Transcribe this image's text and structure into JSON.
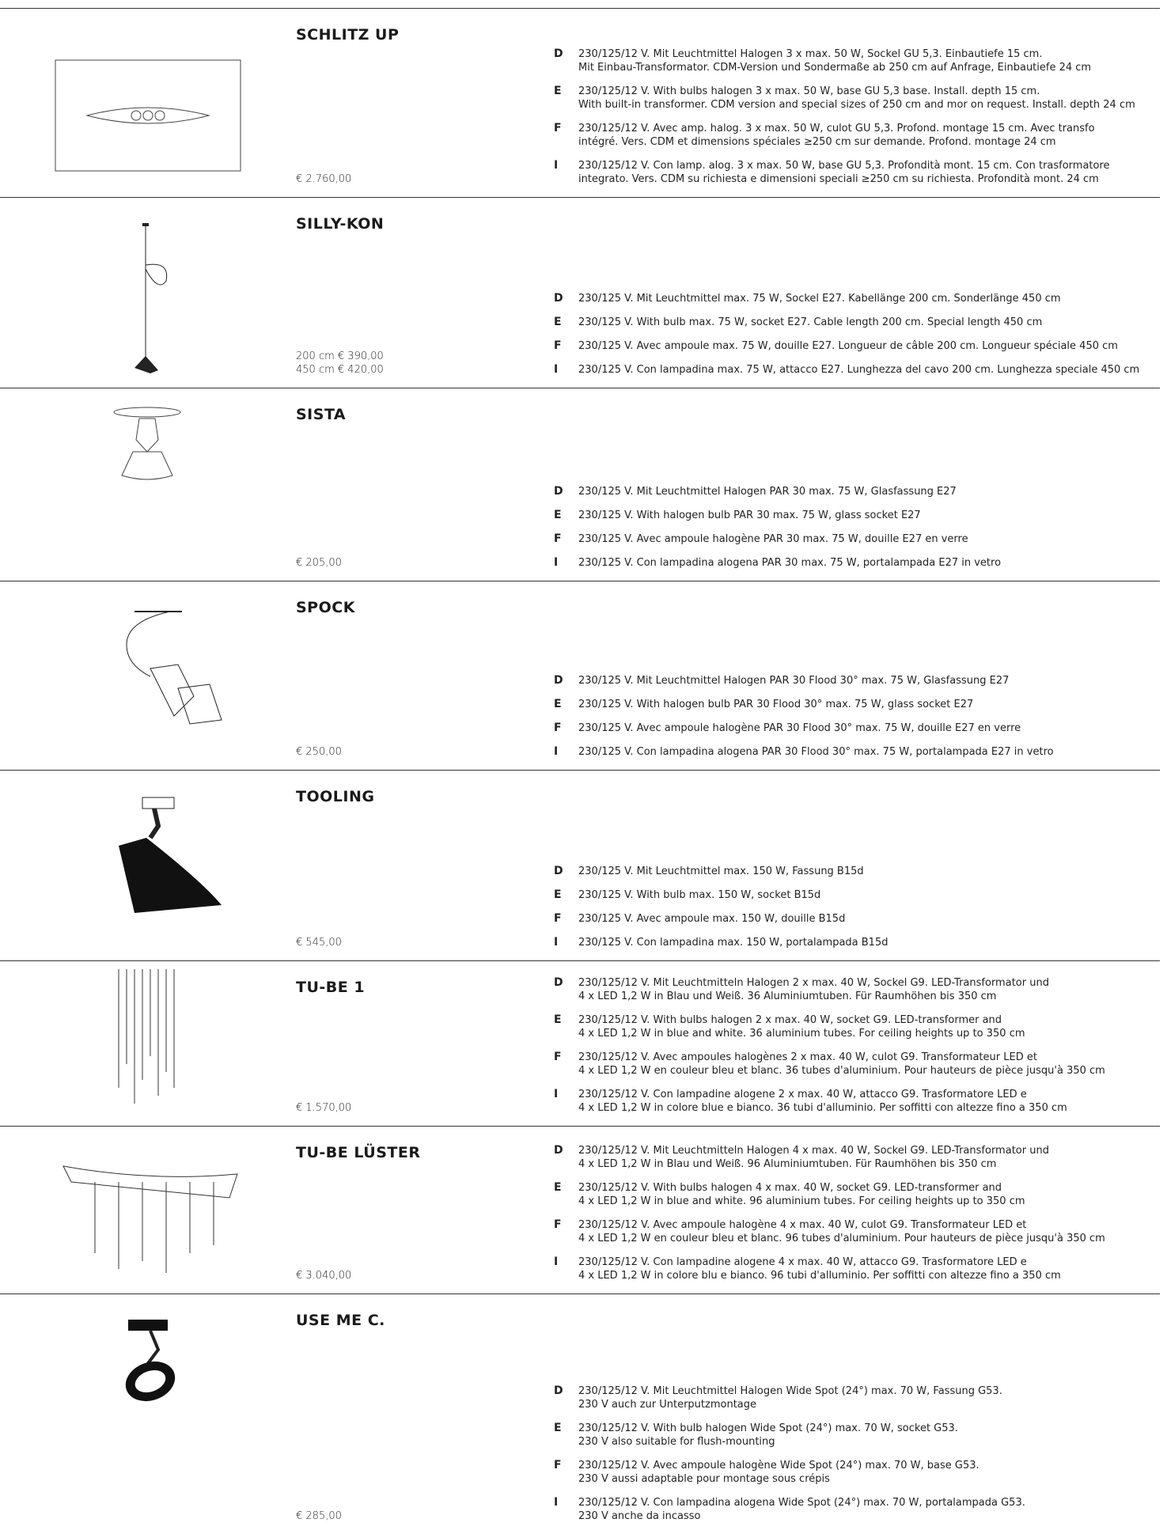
{
  "products": [
    {
      "name": "SCHLITZ UP",
      "prices": [
        "€ 2.760,00"
      ],
      "descriptions": [
        {
          "lang": "D",
          "lines": [
            "230/125/12 V. Mit Leuchtmittel Halogen 3 x max. 50 W, Sockel GU 5,3. Einbautiefe 15 cm.",
            "Mit Einbau-Transformator. CDM-Version und Sondermaße ab 250 cm auf Anfrage, Einbautiefe 24 cm"
          ]
        },
        {
          "lang": "E",
          "lines": [
            "230/125/12 V. With bulbs halogen 3 x max. 50 W, base GU 5,3 base. Install. depth 15 cm.",
            "With built-in transformer. CDM version and special sizes of 250 cm and mor on request. Install. depth 24 cm"
          ]
        },
        {
          "lang": "F",
          "lines": [
            "230/125/12 V. Avec amp. halog. 3 x max. 50 W, culot GU 5,3. Profond. montage 15 cm. Avec transfo",
            "intégré. Vers. CDM et dimensions spéciales ≥250 cm sur demande. Profond. montage 24 cm"
          ]
        },
        {
          "lang": "I",
          "lines": [
            "230/125/12 V. Con lamp. alog. 3 x max. 50 W, base GU 5,3. Profondità mont. 15 cm. Con trasformatore",
            "integrato. Vers. CDM su richiesta e dimensioni speciali ≥250 cm su richiesta. Profondità mont. 24 cm"
          ]
        }
      ]
    },
    {
      "name": "SILLY-KON",
      "prices": [
        "200 cm  € 390,00",
        "450 cm  € 420,00"
      ],
      "descriptions": [
        {
          "lang": "D",
          "lines": [
            "230/125 V. Mit Leuchtmittel max. 75 W, Sockel E27. Kabellänge 200 cm. Sonderlänge 450 cm"
          ]
        },
        {
          "lang": "E",
          "lines": [
            "230/125 V. With bulb max. 75 W, socket E27. Cable length 200 cm. Special length 450 cm"
          ]
        },
        {
          "lang": "F",
          "lines": [
            "230/125 V. Avec ampoule max. 75 W, douille E27. Longueur de câble 200 cm. Longueur spéciale 450 cm"
          ]
        },
        {
          "lang": "I",
          "lines": [
            "230/125 V. Con lampadina max. 75 W, attacco E27. Lunghezza del cavo 200 cm. Lunghezza speciale 450 cm"
          ]
        }
      ]
    },
    {
      "name": "SISTA",
      "prices": [
        "€ 205,00"
      ],
      "descriptions": [
        {
          "lang": "D",
          "lines": [
            "230/125 V. Mit Leuchtmittel Halogen PAR 30 max. 75 W, Glasfassung E27"
          ]
        },
        {
          "lang": "E",
          "lines": [
            "230/125 V. With halogen bulb PAR 30 max. 75 W, glass socket E27"
          ]
        },
        {
          "lang": "F",
          "lines": [
            "230/125 V. Avec ampoule halogène PAR 30 max. 75 W, douille E27 en verre"
          ]
        },
        {
          "lang": "I",
          "lines": [
            "230/125 V. Con lampadina alogena PAR 30 max. 75 W, portalampada E27 in vetro"
          ]
        }
      ]
    },
    {
      "name": "SPOCK",
      "prices": [
        "€ 250,00"
      ],
      "descriptions": [
        {
          "lang": "D",
          "lines": [
            "230/125 V. Mit Leuchtmittel Halogen PAR 30 Flood 30° max. 75 W, Glasfassung E27"
          ]
        },
        {
          "lang": "E",
          "lines": [
            "230/125 V. With halogen bulb PAR 30 Flood 30° max. 75 W, glass socket E27"
          ]
        },
        {
          "lang": "F",
          "lines": [
            "230/125 V. Avec ampoule halogène PAR 30 Flood 30° max. 75 W, douille E27 en verre"
          ]
        },
        {
          "lang": "I",
          "lines": [
            "230/125 V. Con lampadina alogena PAR 30 Flood 30° max. 75 W, portalampada E27 in vetro"
          ]
        }
      ]
    },
    {
      "name": "TOOLING",
      "prices": [
        "€ 545,00"
      ],
      "descriptions": [
        {
          "lang": "D",
          "lines": [
            "230/125 V. Mit Leuchtmittel max. 150 W, Fassung B15d"
          ]
        },
        {
          "lang": "E",
          "lines": [
            "230/125 V. With bulb max. 150 W, socket B15d"
          ]
        },
        {
          "lang": "F",
          "lines": [
            "230/125 V. Avec ampoule max. 150 W, douille B15d"
          ]
        },
        {
          "lang": "I",
          "lines": [
            "230/125 V. Con lampadina max. 150 W, portalampada B15d"
          ]
        }
      ]
    },
    {
      "name": "TU-BE 1",
      "prices": [
        "€ 1.570,00"
      ],
      "descriptions": [
        {
          "lang": "D",
          "lines": [
            "230/125/12 V. Mit Leuchtmitteln Halogen 2 x max. 40 W, Sockel G9. LED-Transformator und",
            "4 x LED 1,2 W in Blau und Weiß. 36 Aluminiumtuben. Für Raumhöhen bis 350 cm"
          ]
        },
        {
          "lang": "E",
          "lines": [
            "230/125/12 V. With bulbs halogen 2 x max. 40 W, socket G9. LED-transformer and",
            "4 x LED 1,2 W in blue and white. 36 aluminium tubes. For ceiling heights up to 350 cm"
          ]
        },
        {
          "lang": "F",
          "lines": [
            "230/125/12 V. Avec ampoules halogènes 2 x max. 40 W, culot G9. Transformateur LED et",
            "4 x LED 1,2 W en couleur bleu et blanc. 36 tubes d'aluminium. Pour hauteurs de pièce jusqu'à 350 cm"
          ]
        },
        {
          "lang": "I",
          "lines": [
            "230/125/12 V. Con lampadine alogene 2 x max. 40 W, attacco G9. Trasformatore LED e",
            "4 x LED 1,2 W in colore blue e bianco. 36 tubi d'alluminio. Per soffitti con altezze fino a 350 cm"
          ]
        }
      ]
    },
    {
      "name": "TU-BE LÜSTER",
      "prices": [
        "€ 3.040,00"
      ],
      "descriptions": [
        {
          "lang": "D",
          "lines": [
            "230/125/12 V. Mit Leuchtmitteln Halogen 4 x max. 40 W, Sockel G9. LED-Transformator und",
            "4 x LED 1,2 W in Blau und Weiß. 96 Aluminiumtuben. Für Raumhöhen bis 350 cm"
          ]
        },
        {
          "lang": "E",
          "lines": [
            "230/125/12 V. With bulbs halogen 4 x max. 40 W, socket G9. LED-transformer and",
            "4 x LED 1,2 W in blue and white. 96 aluminium tubes. For ceiling heights up to 350 cm"
          ]
        },
        {
          "lang": "F",
          "lines": [
            "230/125/12 V. Avec ampoule halogène 4 x max. 40 W, culot G9. Transformateur LED et",
            "4 x LED 1,2 W en couleur bleu et blanc. 96 tubes d'aluminium. Pour hauteurs de pièce jusqu'à 350 cm"
          ]
        },
        {
          "lang": "I",
          "lines": [
            "230/125/12 V. Con lampadine alogene 4 x max. 40 W, attacco G9. Trasformatore LED e",
            "4 x LED 1,2 W in colore blu e bianco. 96 tubi d'alluminio. Per soffitti con altezze fino a 350 cm"
          ]
        }
      ]
    },
    {
      "name": "USE ME C.",
      "prices": [
        "€ 285,00"
      ],
      "descriptions": [
        {
          "lang": "D",
          "lines": [
            "230/125/12 V. Mit Leuchtmittel Halogen Wide Spot (24°) max. 70 W, Fassung G53.",
            "230 V auch zur Unterputzmontage"
          ]
        },
        {
          "lang": "E",
          "lines": [
            "230/125/12 V. With bulb halogen Wide Spot (24°) max. 70 W, socket G53.",
            "230 V also suitable for flush-mounting"
          ]
        },
        {
          "lang": "F",
          "lines": [
            "230/125/12 V. Avec ampoule halogène Wide Spot (24°) max. 70 W, base G53.",
            "230 V aussi adaptable pour montage sous crépis"
          ]
        },
        {
          "lang": "I",
          "lines": [
            "230/125/12 V. Con lampadina alogena Wide Spot (24°) max. 70 W, portalampada G53.",
            "230 V anche da incasso"
          ]
        }
      ]
    }
  ]
}
